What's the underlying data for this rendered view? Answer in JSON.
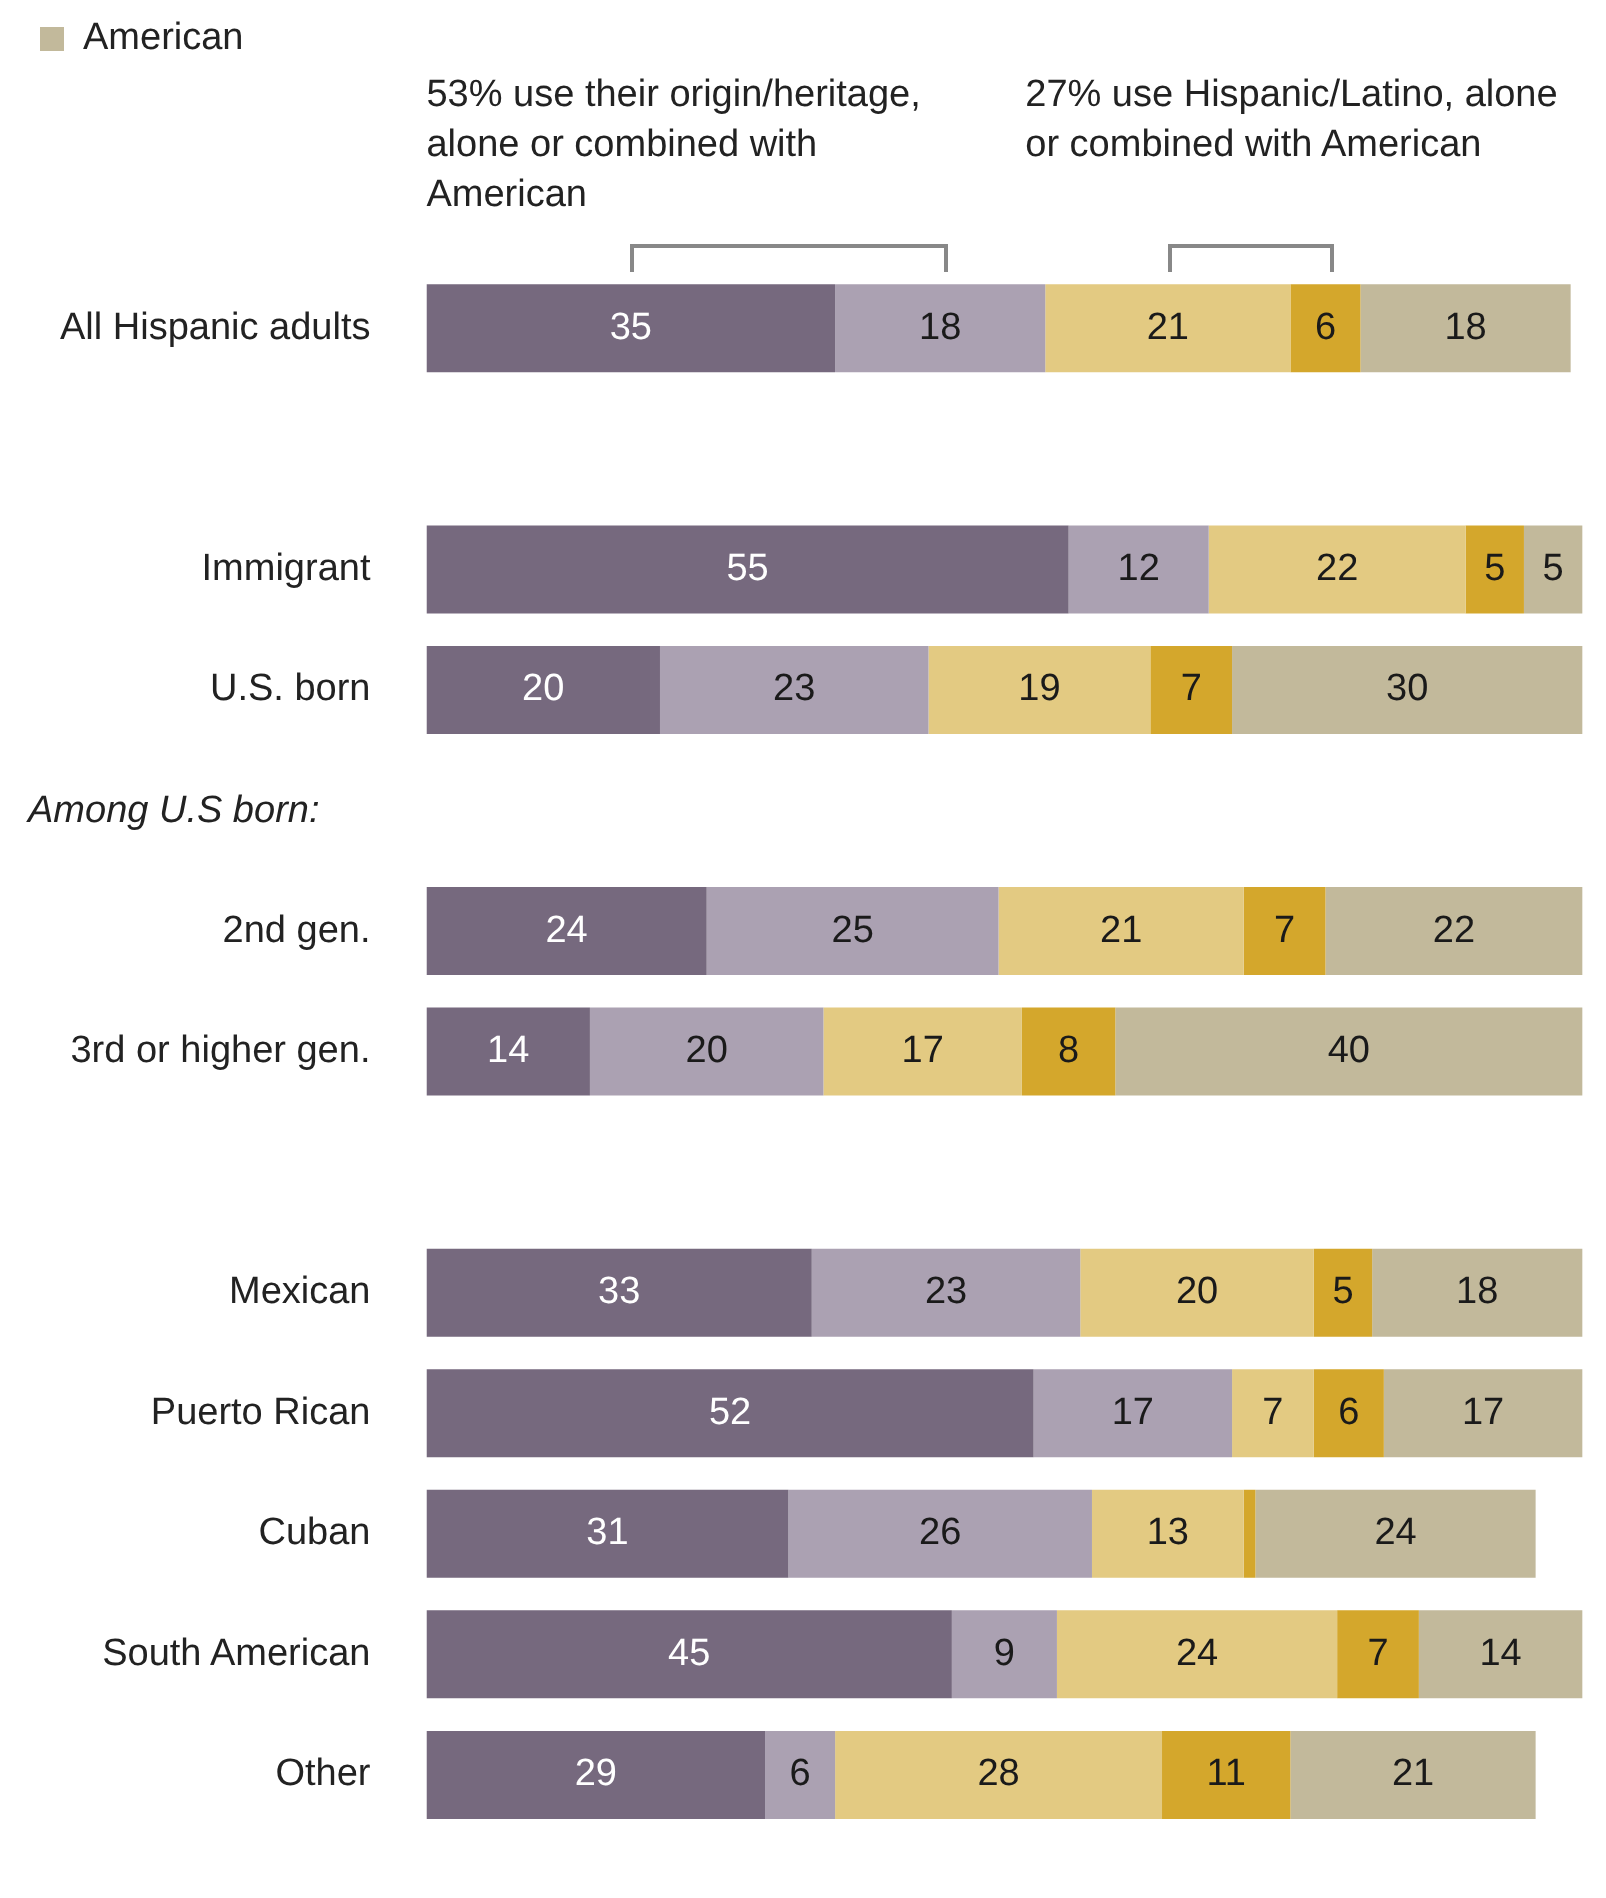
{
  "chart_data": {
    "type": "bar",
    "orientation": "horizontal",
    "stacked": true,
    "data_labels": true,
    "legend": "top left",
    "tick_labels": "y",
    "categories": [
      "All Hispanic adults",
      null,
      "Immigrant",
      "U.S. born",
      null,
      "2nd gen.",
      "3rd or higher gen.",
      null,
      "Mexican",
      "Puerto Rican",
      "Cuban",
      "South American",
      "Other"
    ],
    "series": [
      {
        "color": "#76697e",
        "values": [
          35,
          null,
          55,
          20,
          null,
          24,
          14,
          null,
          33,
          52,
          31,
          45,
          29
        ]
      },
      {
        "color": "#aba1b2",
        "values": [
          18,
          null,
          12,
          23,
          null,
          25,
          20,
          null,
          23,
          17,
          26,
          9,
          6
        ]
      },
      {
        "color": "#e3ca82",
        "values": [
          21,
          null,
          22,
          19,
          null,
          21,
          17,
          null,
          20,
          7,
          13,
          24,
          28
        ]
      },
      {
        "color": "#d4a72c",
        "values": [
          6,
          null,
          5,
          7,
          null,
          7,
          8,
          null,
          5,
          6,
          1,
          7,
          11
        ],
        "value_labels": [
          "6",
          null,
          "5",
          "7",
          null,
          "7",
          "8",
          null,
          "5",
          "6",
          null,
          "7",
          "11"
        ]
      },
      {
        "name": "American",
        "color": "#c2b99b",
        "values": [
          18,
          null,
          5,
          30,
          null,
          22,
          40,
          null,
          18,
          17,
          24,
          14,
          21
        ]
      }
    ],
    "annotations": [
      "53% use their origin/heritage, alone or combined with American",
      "27% use Hispanic/Latino, alone or combined with American",
      "Among U.S born:"
    ]
  }
}
